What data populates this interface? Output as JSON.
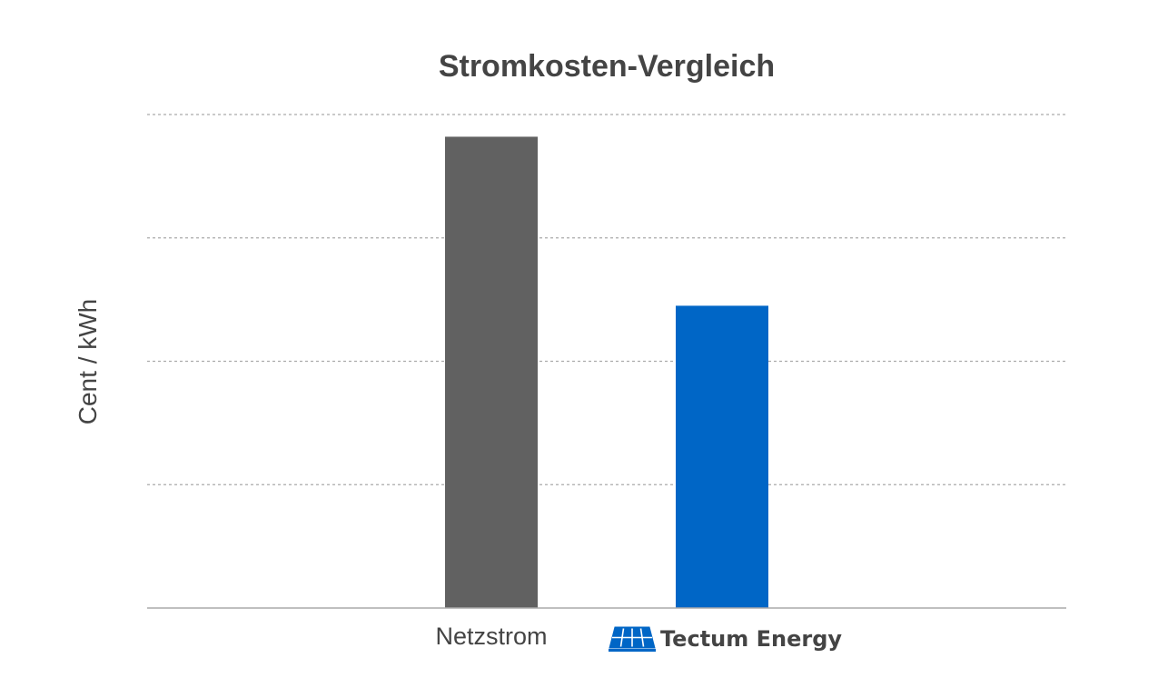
{
  "chart_data": {
    "type": "bar",
    "title": "Stromkosten-Vergleich",
    "xlabel": "",
    "ylabel": "Cent / kWh",
    "categories": [
      "Netzstrom",
      "Tectum Energy"
    ],
    "values": [
      38.2,
      24.5
    ],
    "bar_colors": [
      "#616161",
      "#0066c6"
    ],
    "ylim": [
      0,
      40
    ],
    "y_gridlines": [
      10,
      20,
      30,
      40
    ],
    "grid": true,
    "y_tick_labels_visible": false,
    "legend": "none"
  },
  "logo": {
    "name": "Tectum Energy",
    "icon": "solar-panel-icon",
    "color": "#0066c6"
  },
  "colors": {
    "text": "#444444",
    "grid": "#aaaaaa",
    "axis": "#aaaaaa"
  }
}
